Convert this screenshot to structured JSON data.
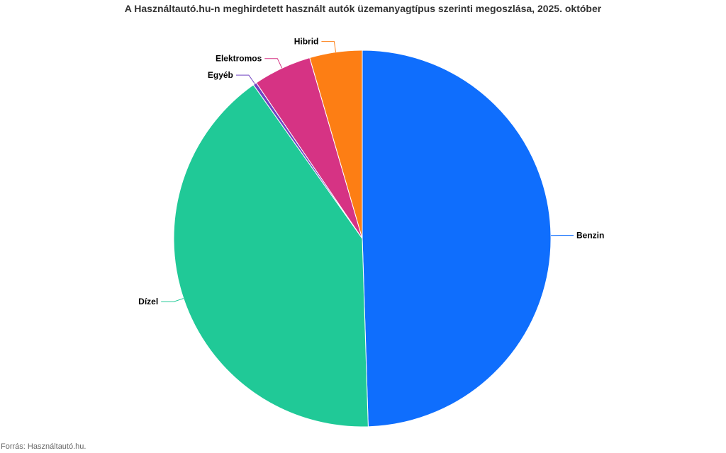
{
  "chart_data": {
    "type": "pie",
    "title": "A Használtautó.hu-n meghirdetett használt autók üzemanyagtípus szerinti megoszlása, 2025. október",
    "source": "Forrás: Használtautó.hu.",
    "start": "top, clockwise",
    "slices": [
      {
        "label": "Benzin",
        "value": 49.5,
        "color": "#0f6efd"
      },
      {
        "label": "Dízel",
        "value": 40.7,
        "color": "#20c997"
      },
      {
        "label": "Egyéb",
        "value": 0.3,
        "color": "#6f42c1"
      },
      {
        "label": "Elektromos",
        "value": 5.0,
        "color": "#d63384"
      },
      {
        "label": "Hibrid",
        "value": 4.5,
        "color": "#fd7e14"
      }
    ]
  }
}
